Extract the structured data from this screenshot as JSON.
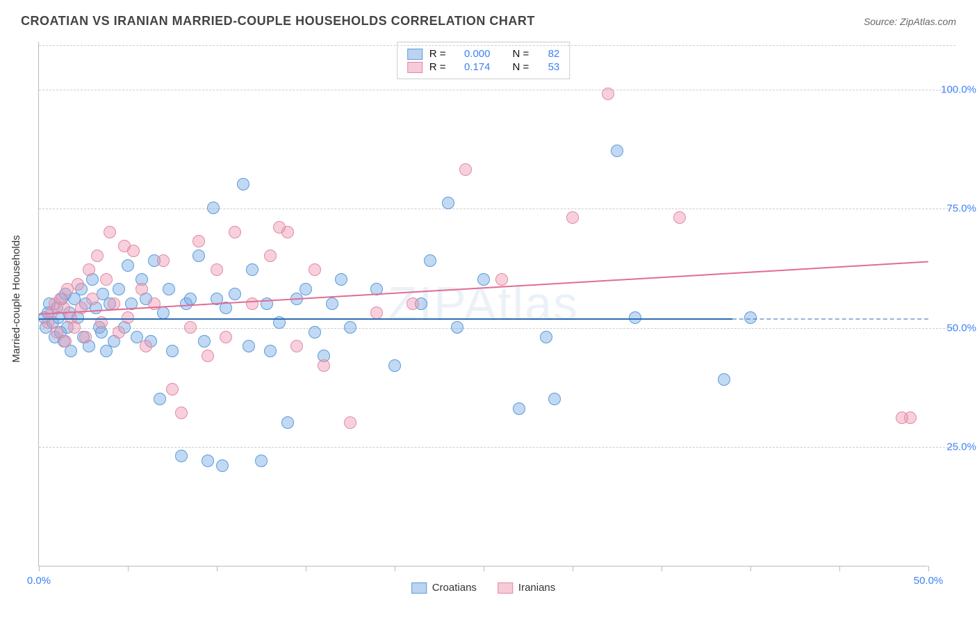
{
  "header": {
    "title": "CROATIAN VS IRANIAN MARRIED-COUPLE HOUSEHOLDS CORRELATION CHART",
    "source_prefix": "Source: ",
    "source_name": "ZipAtlas.com"
  },
  "chart": {
    "type": "scatter",
    "ylabel": "Married-couple Households",
    "watermark": "ZIPAtlas",
    "background_color": "#ffffff",
    "grid_color": "#cccccc",
    "axis_color": "#bbbbbb",
    "xlim": [
      0,
      50
    ],
    "ylim": [
      0,
      110
    ],
    "ytick_values": [
      25,
      50,
      75,
      100
    ],
    "ytick_labels": [
      "25.0%",
      "50.0%",
      "75.0%",
      "100.0%"
    ],
    "xtick_values": [
      0,
      5,
      10,
      15,
      20,
      25,
      30,
      35,
      40,
      45,
      50
    ],
    "xtick_labels_shown": {
      "0": "0.0%",
      "50": "50.0%"
    },
    "tick_label_color": "#3b82f6",
    "series": [
      {
        "name": "Croatians",
        "fill_color": "rgba(120,170,230,0.45)",
        "stroke_color": "#5a9bd8",
        "trend_color": "#2b6cb0",
        "marker_radius": 9,
        "R": "0.000",
        "N": "82",
        "trend": {
          "x1": 0,
          "y1": 52,
          "x2": 39,
          "y2": 52,
          "dashed_to_x": 50
        },
        "points": [
          [
            0.3,
            52
          ],
          [
            0.4,
            50
          ],
          [
            0.5,
            53
          ],
          [
            0.6,
            55
          ],
          [
            0.8,
            51
          ],
          [
            0.9,
            48
          ],
          [
            1.0,
            54
          ],
          [
            1.1,
            52
          ],
          [
            1.2,
            49
          ],
          [
            1.3,
            56
          ],
          [
            1.4,
            47
          ],
          [
            1.5,
            57
          ],
          [
            1.6,
            50
          ],
          [
            1.7,
            53
          ],
          [
            1.8,
            45
          ],
          [
            2.0,
            56
          ],
          [
            2.2,
            52
          ],
          [
            2.4,
            58
          ],
          [
            2.5,
            48
          ],
          [
            2.6,
            55
          ],
          [
            2.8,
            46
          ],
          [
            3.0,
            60
          ],
          [
            3.2,
            54
          ],
          [
            3.4,
            50
          ],
          [
            3.5,
            49
          ],
          [
            3.6,
            57
          ],
          [
            3.8,
            45
          ],
          [
            4.0,
            55
          ],
          [
            4.2,
            47
          ],
          [
            4.5,
            58
          ],
          [
            4.8,
            50
          ],
          [
            5.0,
            63
          ],
          [
            5.2,
            55
          ],
          [
            5.5,
            48
          ],
          [
            5.8,
            60
          ],
          [
            6.0,
            56
          ],
          [
            6.3,
            47
          ],
          [
            6.5,
            64
          ],
          [
            6.8,
            35
          ],
          [
            7.0,
            53
          ],
          [
            7.3,
            58
          ],
          [
            7.5,
            45
          ],
          [
            8.0,
            23
          ],
          [
            8.3,
            55
          ],
          [
            8.5,
            56
          ],
          [
            9.0,
            65
          ],
          [
            9.3,
            47
          ],
          [
            9.5,
            22
          ],
          [
            9.8,
            75
          ],
          [
            10.0,
            56
          ],
          [
            10.3,
            21
          ],
          [
            10.5,
            54
          ],
          [
            11.0,
            57
          ],
          [
            11.5,
            80
          ],
          [
            11.8,
            46
          ],
          [
            12.0,
            62
          ],
          [
            12.5,
            22
          ],
          [
            12.8,
            55
          ],
          [
            13.0,
            45
          ],
          [
            13.5,
            51
          ],
          [
            14.0,
            30
          ],
          [
            14.5,
            56
          ],
          [
            15.0,
            58
          ],
          [
            15.5,
            49
          ],
          [
            16.0,
            44
          ],
          [
            16.5,
            55
          ],
          [
            17.0,
            60
          ],
          [
            17.5,
            50
          ],
          [
            19.0,
            58
          ],
          [
            20.0,
            42
          ],
          [
            21.5,
            55
          ],
          [
            22.0,
            64
          ],
          [
            23.0,
            76
          ],
          [
            23.5,
            50
          ],
          [
            25.0,
            60
          ],
          [
            27.0,
            33
          ],
          [
            28.5,
            48
          ],
          [
            29.0,
            35
          ],
          [
            32.5,
            87
          ],
          [
            33.5,
            52
          ],
          [
            38.5,
            39
          ],
          [
            40.0,
            52
          ]
        ]
      },
      {
        "name": "Iranians",
        "fill_color": "rgba(240,150,175,0.45)",
        "stroke_color": "#e08aa5",
        "trend_color": "#e36b94",
        "marker_radius": 9,
        "R": "0.174",
        "N": "53",
        "trend": {
          "x1": 0,
          "y1": 53,
          "x2": 50,
          "y2": 64,
          "dashed_to_x": 50
        },
        "points": [
          [
            0.5,
            51
          ],
          [
            0.7,
            53
          ],
          [
            0.9,
            55
          ],
          [
            1.0,
            49
          ],
          [
            1.2,
            56
          ],
          [
            1.4,
            54
          ],
          [
            1.5,
            47
          ],
          [
            1.6,
            58
          ],
          [
            1.8,
            52
          ],
          [
            2.0,
            50
          ],
          [
            2.2,
            59
          ],
          [
            2.4,
            54
          ],
          [
            2.6,
            48
          ],
          [
            2.8,
            62
          ],
          [
            3.0,
            56
          ],
          [
            3.3,
            65
          ],
          [
            3.5,
            51
          ],
          [
            3.8,
            60
          ],
          [
            4.0,
            70
          ],
          [
            4.2,
            55
          ],
          [
            4.5,
            49
          ],
          [
            4.8,
            67
          ],
          [
            5.0,
            52
          ],
          [
            5.3,
            66
          ],
          [
            5.8,
            58
          ],
          [
            6.0,
            46
          ],
          [
            6.5,
            55
          ],
          [
            7.0,
            64
          ],
          [
            7.5,
            37
          ],
          [
            8.0,
            32
          ],
          [
            8.5,
            50
          ],
          [
            9.0,
            68
          ],
          [
            9.5,
            44
          ],
          [
            10.0,
            62
          ],
          [
            10.5,
            48
          ],
          [
            11.0,
            70
          ],
          [
            12.0,
            55
          ],
          [
            13.0,
            65
          ],
          [
            13.5,
            71
          ],
          [
            14.0,
            70
          ],
          [
            14.5,
            46
          ],
          [
            15.5,
            62
          ],
          [
            16.0,
            42
          ],
          [
            17.5,
            30
          ],
          [
            19.0,
            53
          ],
          [
            21.0,
            55
          ],
          [
            24.0,
            83
          ],
          [
            26.0,
            60
          ],
          [
            30.0,
            73
          ],
          [
            32.0,
            99
          ],
          [
            36.0,
            73
          ],
          [
            49.0,
            31
          ],
          [
            48.5,
            31
          ]
        ]
      }
    ],
    "legend": {
      "swatch_border_blue": "#5a9bd8",
      "swatch_fill_blue": "rgba(120,170,230,0.5)",
      "swatch_border_pink": "#e08aa5",
      "swatch_fill_pink": "rgba(240,150,175,0.5)",
      "r_label": "R =",
      "n_label": "N =",
      "bottom_items": [
        "Croatians",
        "Iranians"
      ]
    }
  }
}
